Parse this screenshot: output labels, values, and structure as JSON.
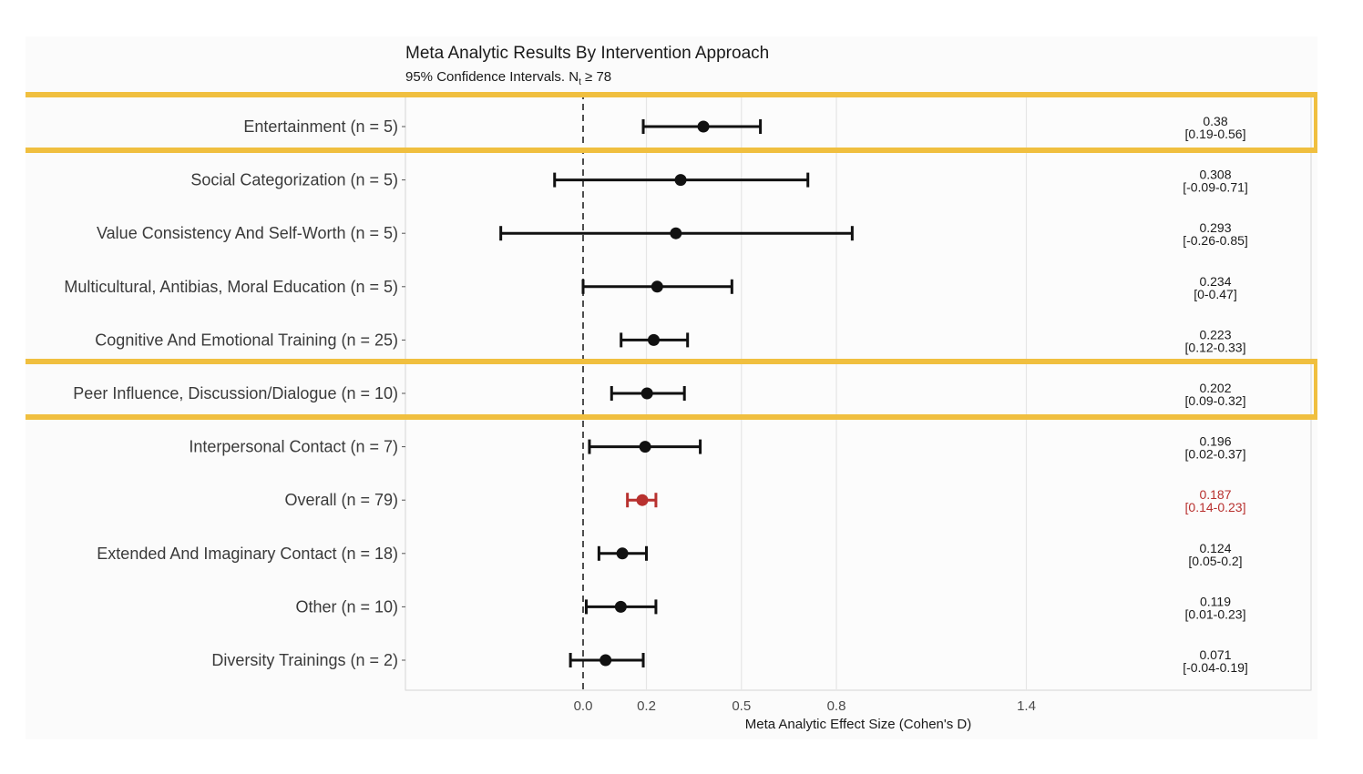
{
  "chart_data": {
    "type": "forest",
    "title": "Meta Analytic Results By Intervention Approach",
    "subtitle": "95% Confidence Intervals. N",
    "subtitle_subscript": "t",
    "subtitle_suffix": " ≥ 78",
    "xlabel": "Meta Analytic Effect Size (Cohen's D)",
    "x_ticks": [
      0.0,
      0.2,
      0.5,
      0.8,
      1.4
    ],
    "x_tick_labels": [
      "0.0",
      "0.2",
      "0.5",
      "0.8",
      "1.4"
    ],
    "xlim": [
      -0.56,
      2.3
    ],
    "reference_line": 0,
    "grid": true,
    "rows": [
      {
        "label": "Entertainment (n = 5)",
        "estimate": 0.38,
        "lower": 0.19,
        "upper": 0.56,
        "value_text": "0.38",
        "ci_text": "[0.19-0.56]",
        "highlighted": true,
        "overall": false
      },
      {
        "label": "Social Categorization (n = 5)",
        "estimate": 0.308,
        "lower": -0.09,
        "upper": 0.71,
        "value_text": "0.308",
        "ci_text": "[-0.09-0.71]",
        "highlighted": false,
        "overall": false
      },
      {
        "label": "Value Consistency And Self-Worth (n = 5)",
        "estimate": 0.293,
        "lower": -0.26,
        "upper": 0.85,
        "value_text": "0.293",
        "ci_text": "[-0.26-0.85]",
        "highlighted": false,
        "overall": false
      },
      {
        "label": "Multicultural, Antibias, Moral Education (n = 5)",
        "estimate": 0.234,
        "lower": 0,
        "upper": 0.47,
        "value_text": "0.234",
        "ci_text": "[0-0.47]",
        "highlighted": false,
        "overall": false
      },
      {
        "label": "Cognitive And Emotional Training (n = 25)",
        "estimate": 0.223,
        "lower": 0.12,
        "upper": 0.33,
        "value_text": "0.223",
        "ci_text": "[0.12-0.33]",
        "highlighted": false,
        "overall": false
      },
      {
        "label": "Peer Influence, Discussion/Dialogue (n = 10)",
        "estimate": 0.202,
        "lower": 0.09,
        "upper": 0.32,
        "value_text": "0.202",
        "ci_text": "[0.09-0.32]",
        "highlighted": true,
        "overall": false
      },
      {
        "label": "Interpersonal Contact (n = 7)",
        "estimate": 0.196,
        "lower": 0.02,
        "upper": 0.37,
        "value_text": "0.196",
        "ci_text": "[0.02-0.37]",
        "highlighted": false,
        "overall": false
      },
      {
        "label": "Overall (n = 79)",
        "estimate": 0.187,
        "lower": 0.14,
        "upper": 0.23,
        "value_text": "0.187",
        "ci_text": "[0.14-0.23]",
        "highlighted": false,
        "overall": true
      },
      {
        "label": "Extended And Imaginary Contact (n = 18)",
        "estimate": 0.124,
        "lower": 0.05,
        "upper": 0.2,
        "value_text": "0.124",
        "ci_text": "[0.05-0.2]",
        "highlighted": false,
        "overall": false
      },
      {
        "label": "Other (n = 10)",
        "estimate": 0.119,
        "lower": 0.01,
        "upper": 0.23,
        "value_text": "0.119",
        "ci_text": "[0.01-0.23]",
        "highlighted": false,
        "overall": false
      },
      {
        "label": "Diversity Trainings (n = 2)",
        "estimate": 0.071,
        "lower": -0.04,
        "upper": 0.19,
        "value_text": "0.071",
        "ci_text": "[-0.04-0.19]",
        "highlighted": false,
        "overall": false
      }
    ]
  },
  "colors": {
    "point": "#111111",
    "overall": "#b8312f",
    "highlight_box": "#f0bf3f",
    "grid": "#e6e6e6",
    "panel_border": "#d5d5d5",
    "reference_line": "#222222"
  }
}
